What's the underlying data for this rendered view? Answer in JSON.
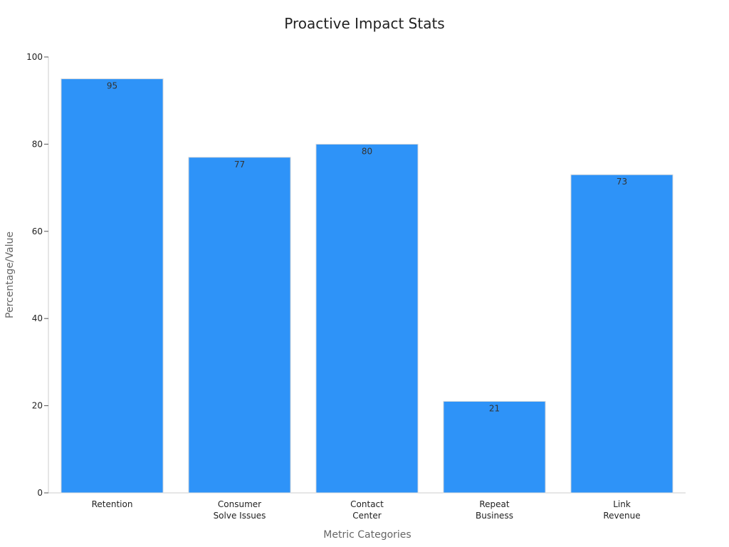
{
  "chart_data": {
    "type": "bar",
    "title": "Proactive Impact Stats",
    "xlabel": "Metric Categories",
    "ylabel": "Percentage/Value",
    "categories": [
      [
        "Retention"
      ],
      [
        "Consumer",
        "Solve Issues"
      ],
      [
        "Contact",
        "Center"
      ],
      [
        "Repeat",
        "Business"
      ],
      [
        "Link",
        "Revenue"
      ]
    ],
    "values": [
      95,
      77,
      80,
      21,
      73
    ],
    "ylim": [
      0,
      100
    ],
    "yticks": [
      0,
      20,
      40,
      60,
      80,
      100
    ],
    "grid": false,
    "legend": "none",
    "bar_color": "#2E93F8"
  }
}
